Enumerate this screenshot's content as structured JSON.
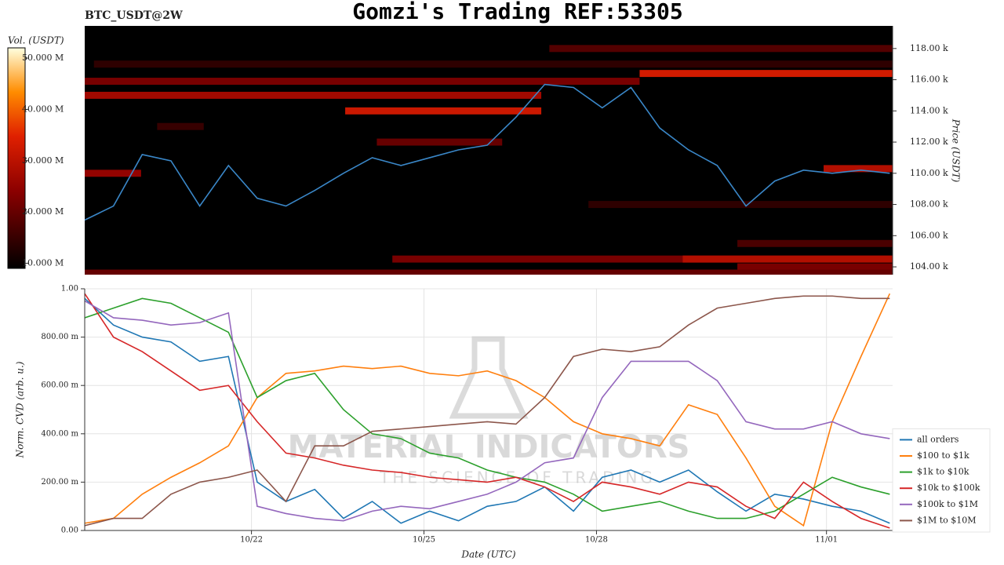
{
  "chart_data": [
    {
      "type": "heatmap",
      "title": "Gomzi's Trading REF:53305",
      "symbol": "BTC_USDT@2W",
      "ylabel": "Price (USDT)",
      "x": [
        19.1,
        19.6,
        20.1,
        20.6,
        21.1,
        21.6,
        22.1,
        22.6,
        23.1,
        23.6,
        24.1,
        24.6,
        25.1,
        25.6,
        26.1,
        26.6,
        27.1,
        27.6,
        28.1,
        28.6,
        29.1,
        29.6,
        30.1,
        30.6,
        31.1,
        31.6,
        32.1,
        32.6,
        33.1
      ],
      "values": [
        107000,
        107900,
        111200,
        110800,
        107900,
        110500,
        108400,
        107900,
        108900,
        110000,
        111000,
        110500,
        111000,
        111500,
        111800,
        113600,
        115700,
        115500,
        114200,
        115500,
        112900,
        111500,
        110500,
        107900,
        109500,
        110200,
        110000,
        110200,
        110000
      ],
      "color": "#3a87c8",
      "xlim": [
        19.1,
        33.15
      ],
      "ylim": [
        103500,
        119450
      ],
      "yticks": [
        {
          "value": 104000,
          "label": "104.00 k"
        },
        {
          "value": 106000,
          "label": "106.00 k"
        },
        {
          "value": 108000,
          "label": "108.00 k"
        },
        {
          "value": 110000,
          "label": "110.00 k"
        },
        {
          "value": 112000,
          "label": "112.00 k"
        },
        {
          "value": 114000,
          "label": "114.00 k"
        },
        {
          "value": 116000,
          "label": "116.00 k"
        },
        {
          "value": 118000,
          "label": "118.00 k"
        }
      ],
      "bands": [
        {
          "price": 118000,
          "start": 27.18,
          "end": 33.15,
          "volume": 18000000
        },
        {
          "price": 117000,
          "start": 19.26,
          "end": 33.15,
          "volume": 14000000
        },
        {
          "price": 116400,
          "start": 28.75,
          "end": 33.15,
          "volume": 33000000
        },
        {
          "price": 115900,
          "start": 19.1,
          "end": 28.75,
          "volume": 22000000
        },
        {
          "price": 115000,
          "start": 19.1,
          "end": 27.04,
          "volume": 27000000
        },
        {
          "price": 114000,
          "start": 23.63,
          "end": 27.04,
          "volume": 32000000
        },
        {
          "price": 113000,
          "start": 20.36,
          "end": 21.17,
          "volume": 15000000
        },
        {
          "price": 112000,
          "start": 24.18,
          "end": 26.36,
          "volume": 20000000
        },
        {
          "price": 110000,
          "start": 19.1,
          "end": 20.08,
          "volume": 25000000
        },
        {
          "price": 110300,
          "start": 31.95,
          "end": 33.15,
          "volume": 29000000
        },
        {
          "price": 108000,
          "start": 27.86,
          "end": 33.15,
          "volume": 14000000
        },
        {
          "price": 105500,
          "start": 30.45,
          "end": 33.15,
          "volume": 17000000
        },
        {
          "price": 104500,
          "start": 24.45,
          "end": 33.15,
          "volume": 22000000
        },
        {
          "price": 104500,
          "start": 29.5,
          "end": 33.15,
          "volume": 29000000
        },
        {
          "price": 104000,
          "start": 30.45,
          "end": 33.15,
          "volume": 22000000
        },
        {
          "price": 103600,
          "start": 19.1,
          "end": 33.15,
          "volume": 20000000
        }
      ],
      "colorbar": {
        "label": "Vol. (USDT)",
        "lim": [
          9000000,
          52000000
        ],
        "ticks": [
          {
            "value": 10000000,
            "label": "10.000 M"
          },
          {
            "value": 20000000,
            "label": "20.000 M"
          },
          {
            "value": 30000000,
            "label": "30.000 M"
          },
          {
            "value": 40000000,
            "label": "40.000 M"
          },
          {
            "value": 50000000,
            "label": "50.000 M"
          }
        ]
      }
    },
    {
      "type": "line",
      "xlabel": "Date (UTC)",
      "ylabel": "Norm. CVD (arb. u.)",
      "watermark": [
        "MATERIAL INDICATORS",
        "THE SCIENCE OF TRADING"
      ],
      "x": [
        19.1,
        19.6,
        20.1,
        20.6,
        21.1,
        21.6,
        22.1,
        22.6,
        23.1,
        23.6,
        24.1,
        24.6,
        25.1,
        25.6,
        26.1,
        26.6,
        27.1,
        27.6,
        28.1,
        28.6,
        29.1,
        29.6,
        30.1,
        30.6,
        31.1,
        31.6,
        32.1,
        32.6,
        33.1
      ],
      "xlim": [
        19.1,
        33.15
      ],
      "xticks": [
        {
          "value": 22,
          "label": "10/22"
        },
        {
          "value": 25,
          "label": "10/25"
        },
        {
          "value": 28,
          "label": "10/28"
        },
        {
          "value": 32,
          "label": "11/01"
        }
      ],
      "ylim": [
        0,
        1
      ],
      "yticks": [
        {
          "value": 0,
          "label": "0.00"
        },
        {
          "value": 0.2,
          "label": "200.00 m"
        },
        {
          "value": 0.4,
          "label": "400.00 m"
        },
        {
          "value": 0.6,
          "label": "600.00 m"
        },
        {
          "value": 0.8,
          "label": "800.00 m"
        },
        {
          "value": 1,
          "label": "1.00"
        }
      ],
      "grid": true,
      "legend": "lower right",
      "series": [
        {
          "name": "all orders",
          "color": "#1f77b4",
          "values": [
            0.96,
            0.85,
            0.8,
            0.78,
            0.7,
            0.72,
            0.2,
            0.12,
            0.17,
            0.05,
            0.12,
            0.03,
            0.08,
            0.04,
            0.1,
            0.12,
            0.18,
            0.08,
            0.22,
            0.25,
            0.2,
            0.25,
            0.16,
            0.08,
            0.15,
            0.13,
            0.1,
            0.08,
            0.03
          ]
        },
        {
          "name": "$100 to $1k",
          "color": "#ff7f0e",
          "values": [
            0.03,
            0.05,
            0.15,
            0.22,
            0.28,
            0.35,
            0.55,
            0.65,
            0.66,
            0.68,
            0.67,
            0.68,
            0.65,
            0.64,
            0.66,
            0.62,
            0.55,
            0.45,
            0.4,
            0.38,
            0.35,
            0.52,
            0.48,
            0.3,
            0.1,
            0.02,
            0.45,
            0.72,
            0.98
          ]
        },
        {
          "name": "$1k to $10k",
          "color": "#2ca02c",
          "values": [
            0.88,
            0.92,
            0.96,
            0.94,
            0.88,
            0.82,
            0.55,
            0.62,
            0.65,
            0.5,
            0.4,
            0.38,
            0.32,
            0.3,
            0.25,
            0.22,
            0.2,
            0.15,
            0.08,
            0.1,
            0.12,
            0.08,
            0.05,
            0.05,
            0.08,
            0.15,
            0.22,
            0.18,
            0.15
          ]
        },
        {
          "name": "$10k to $100k",
          "color": "#d62728",
          "values": [
            0.98,
            0.8,
            0.74,
            0.66,
            0.58,
            0.6,
            0.45,
            0.32,
            0.3,
            0.27,
            0.25,
            0.24,
            0.22,
            0.21,
            0.2,
            0.22,
            0.18,
            0.12,
            0.2,
            0.18,
            0.15,
            0.2,
            0.18,
            0.1,
            0.05,
            0.2,
            0.12,
            0.05,
            0.01
          ]
        },
        {
          "name": "$100k to $1M",
          "color": "#9467bd",
          "values": [
            0.95,
            0.88,
            0.87,
            0.85,
            0.86,
            0.9,
            0.1,
            0.07,
            0.05,
            0.04,
            0.08,
            0.1,
            0.09,
            0.12,
            0.15,
            0.2,
            0.28,
            0.3,
            0.55,
            0.7,
            0.7,
            0.7,
            0.62,
            0.45,
            0.42,
            0.42,
            0.45,
            0.4,
            0.38
          ]
        },
        {
          "name": "$1M to $10M",
          "color": "#8c564b",
          "values": [
            0.02,
            0.05,
            0.05,
            0.15,
            0.2,
            0.22,
            0.25,
            0.12,
            0.35,
            0.35,
            0.41,
            0.42,
            0.43,
            0.44,
            0.45,
            0.44,
            0.55,
            0.72,
            0.75,
            0.74,
            0.76,
            0.85,
            0.92,
            0.94,
            0.96,
            0.97,
            0.97,
            0.96,
            0.96
          ]
        }
      ]
    }
  ]
}
